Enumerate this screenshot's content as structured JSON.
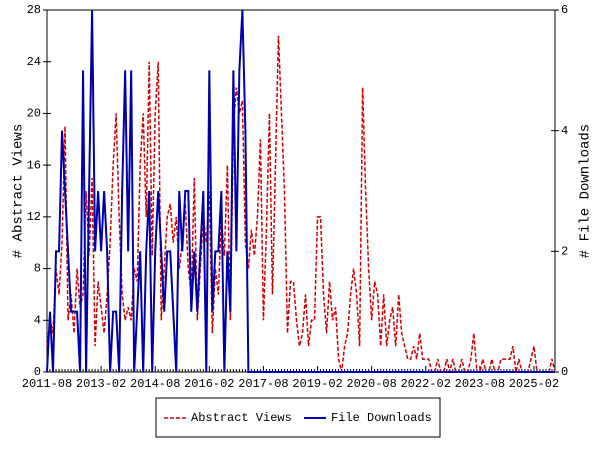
{
  "chart_data": {
    "type": "line",
    "categories": [
      "2011-08",
      null,
      null,
      null,
      null,
      null,
      null,
      null,
      null,
      null,
      null,
      null,
      null,
      null,
      null,
      null,
      null,
      null,
      "2013-02",
      null,
      null,
      null,
      null,
      null,
      null,
      null,
      null,
      null,
      null,
      null,
      null,
      null,
      null,
      null,
      null,
      null,
      "2014-08",
      null,
      null,
      null,
      null,
      null,
      null,
      null,
      null,
      null,
      null,
      null,
      null,
      null,
      null,
      null,
      null,
      null,
      "2016-02",
      null,
      null,
      null,
      null,
      null,
      null,
      null,
      null,
      null,
      null,
      null,
      null,
      null,
      null,
      null,
      null,
      null,
      "2017-08",
      null,
      null,
      null,
      null,
      null,
      null,
      null,
      null,
      null,
      null,
      null,
      null,
      null,
      null,
      null,
      null,
      null,
      "2019-02",
      null,
      null,
      null,
      null,
      null,
      null,
      null,
      null,
      null,
      null,
      null,
      null,
      null,
      null,
      null,
      null,
      null,
      "2020-08",
      null,
      null,
      null,
      null,
      null,
      null,
      null,
      null,
      null,
      null,
      null,
      null,
      null,
      null,
      null,
      null,
      null,
      "2022-02",
      null,
      null,
      null,
      null,
      null,
      null,
      null,
      null,
      null,
      null,
      null,
      null,
      null,
      null,
      null,
      null,
      null,
      "2023-08",
      null,
      null,
      null,
      null,
      null,
      null,
      null,
      null,
      null,
      null,
      null,
      null,
      null,
      null,
      null,
      null,
      null,
      "2025-02",
      null,
      null,
      null,
      null,
      null,
      null,
      null
    ],
    "series": [
      {
        "name": "Abstract Views",
        "color": "#cc0000",
        "axis": "y",
        "values": [
          2,
          4,
          3,
          8,
          6,
          10,
          19,
          4,
          6,
          3,
          8,
          5,
          6,
          14,
          9,
          15,
          2,
          7,
          5,
          3,
          6,
          10,
          16,
          20,
          12,
          6,
          4,
          5,
          4,
          8,
          7,
          16,
          20,
          12,
          24,
          9,
          20,
          24,
          4,
          8,
          12,
          13,
          10,
          12,
          8,
          10,
          13,
          8,
          6,
          15,
          4,
          8,
          12,
          10,
          14,
          3,
          8,
          6,
          12,
          9,
          16,
          4,
          19,
          22,
          20,
          21,
          10,
          8,
          11,
          9,
          12,
          18,
          4,
          11,
          20,
          6,
          16,
          26,
          20,
          14,
          3,
          7,
          7,
          4,
          2,
          3,
          6,
          2,
          4,
          4,
          12,
          12,
          6,
          3,
          7,
          4,
          5,
          1,
          0,
          2,
          3,
          6,
          8,
          6,
          2,
          22,
          14,
          8,
          4,
          7,
          6,
          2,
          6,
          2,
          4,
          5,
          2,
          6,
          3,
          2,
          1,
          1,
          2,
          1,
          3,
          1,
          1,
          1,
          0,
          0,
          1,
          0,
          0,
          1,
          0,
          1,
          0,
          0,
          1,
          0,
          0,
          1,
          3,
          0,
          0,
          1,
          0,
          0,
          1,
          0,
          0,
          1,
          1,
          1,
          1,
          2,
          0,
          1,
          0,
          0,
          0,
          1,
          2,
          0,
          0,
          0,
          0,
          0,
          1,
          0
        ]
      },
      {
        "name": "File Downloads",
        "color": "#0000aa",
        "axis": "y2",
        "values": [
          0,
          1,
          0,
          2,
          2,
          4,
          3,
          2,
          1,
          1,
          1,
          0,
          5,
          0,
          3,
          6,
          2,
          3,
          2,
          3,
          2,
          0,
          1,
          1,
          0,
          3,
          5,
          2,
          5,
          0,
          1,
          2,
          0,
          2,
          3,
          0,
          2,
          3,
          2,
          1,
          2,
          2,
          1,
          0,
          3,
          2,
          3,
          3,
          1,
          2,
          1,
          2,
          3,
          0,
          5,
          1,
          2,
          2,
          3,
          0,
          2,
          1,
          5,
          2,
          5,
          6,
          4,
          0,
          0,
          0,
          0,
          0,
          0,
          0,
          0,
          0,
          0,
          0,
          0,
          0,
          0,
          0,
          0,
          0,
          0,
          0,
          0,
          0,
          0,
          0,
          0,
          0,
          0,
          0,
          0,
          0,
          0,
          0,
          0,
          0,
          0,
          0,
          0,
          0,
          0,
          0,
          0,
          0,
          0,
          0,
          0,
          0,
          0,
          0,
          0,
          0,
          0,
          0,
          0,
          0,
          0,
          0,
          0,
          0,
          0,
          0,
          0,
          0,
          0,
          0,
          0,
          0,
          0,
          0,
          0,
          0,
          0,
          0,
          0,
          0,
          0,
          0,
          0,
          0,
          0,
          0,
          0,
          0,
          0,
          0,
          0,
          0,
          0,
          0,
          0,
          0,
          0,
          0,
          0,
          0,
          0,
          0,
          0,
          0,
          0,
          0,
          0,
          0,
          0,
          0
        ]
      }
    ],
    "ylabel": "# Abstract Views",
    "y2label": "# File Downloads",
    "ylim": [
      0,
      28
    ],
    "yticks": [
      0,
      4,
      8,
      12,
      16,
      20,
      24,
      28
    ],
    "y2lim": [
      0,
      6
    ],
    "y2ticks": [
      0,
      2,
      4,
      6
    ],
    "grid": false
  }
}
